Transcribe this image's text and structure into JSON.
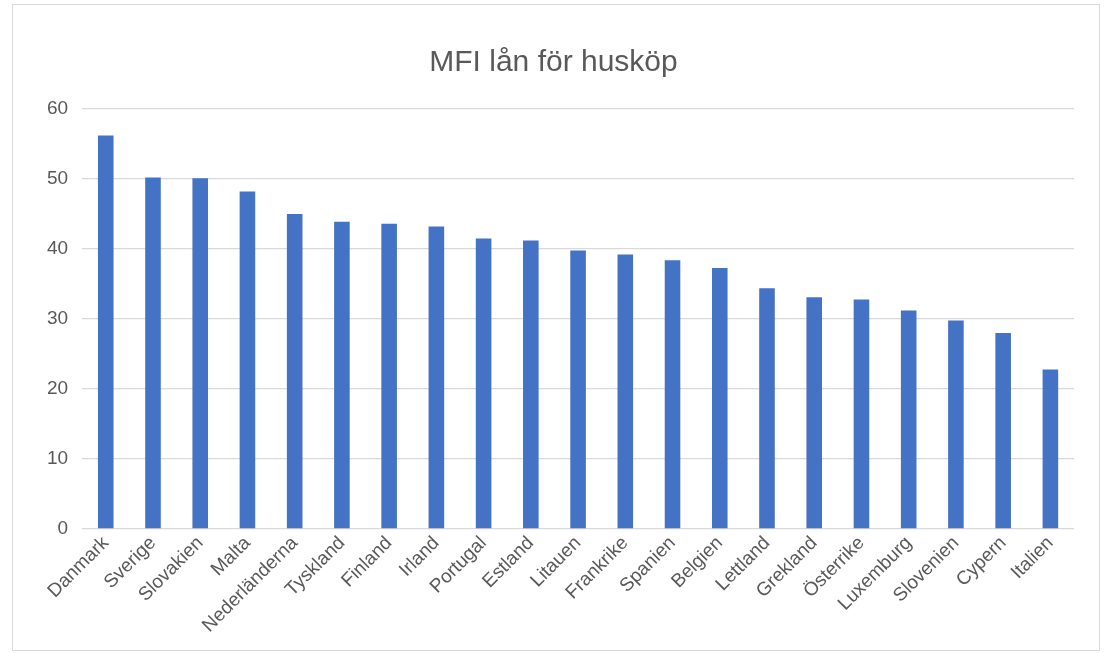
{
  "chart_data": {
    "type": "bar",
    "title": "MFI lån för husköp",
    "categories": [
      "Danmark",
      "Sverige",
      "Slovakien",
      "Malta",
      "Nederländerna",
      "Tyskland",
      "Finland",
      "Irland",
      "Portugal",
      "Estland",
      "Litauen",
      "Frankrike",
      "Spanien",
      "Belgien",
      "Lettland",
      "Grekland",
      "Österrike",
      "Luxemburg",
      "Slovenien",
      "Cypern",
      "Italien"
    ],
    "values": [
      56.2,
      50.2,
      50.1,
      48.2,
      45.0,
      43.9,
      43.6,
      43.2,
      41.5,
      41.2,
      39.8,
      39.2,
      38.4,
      37.3,
      34.4,
      33.1,
      32.8,
      31.2,
      29.8,
      28.0,
      22.8
    ],
    "color": "#4472c4",
    "ylim": [
      0,
      60
    ],
    "yticks": [
      0,
      10,
      20,
      30,
      40,
      50,
      60
    ],
    "grid": "y",
    "legend": false
  }
}
